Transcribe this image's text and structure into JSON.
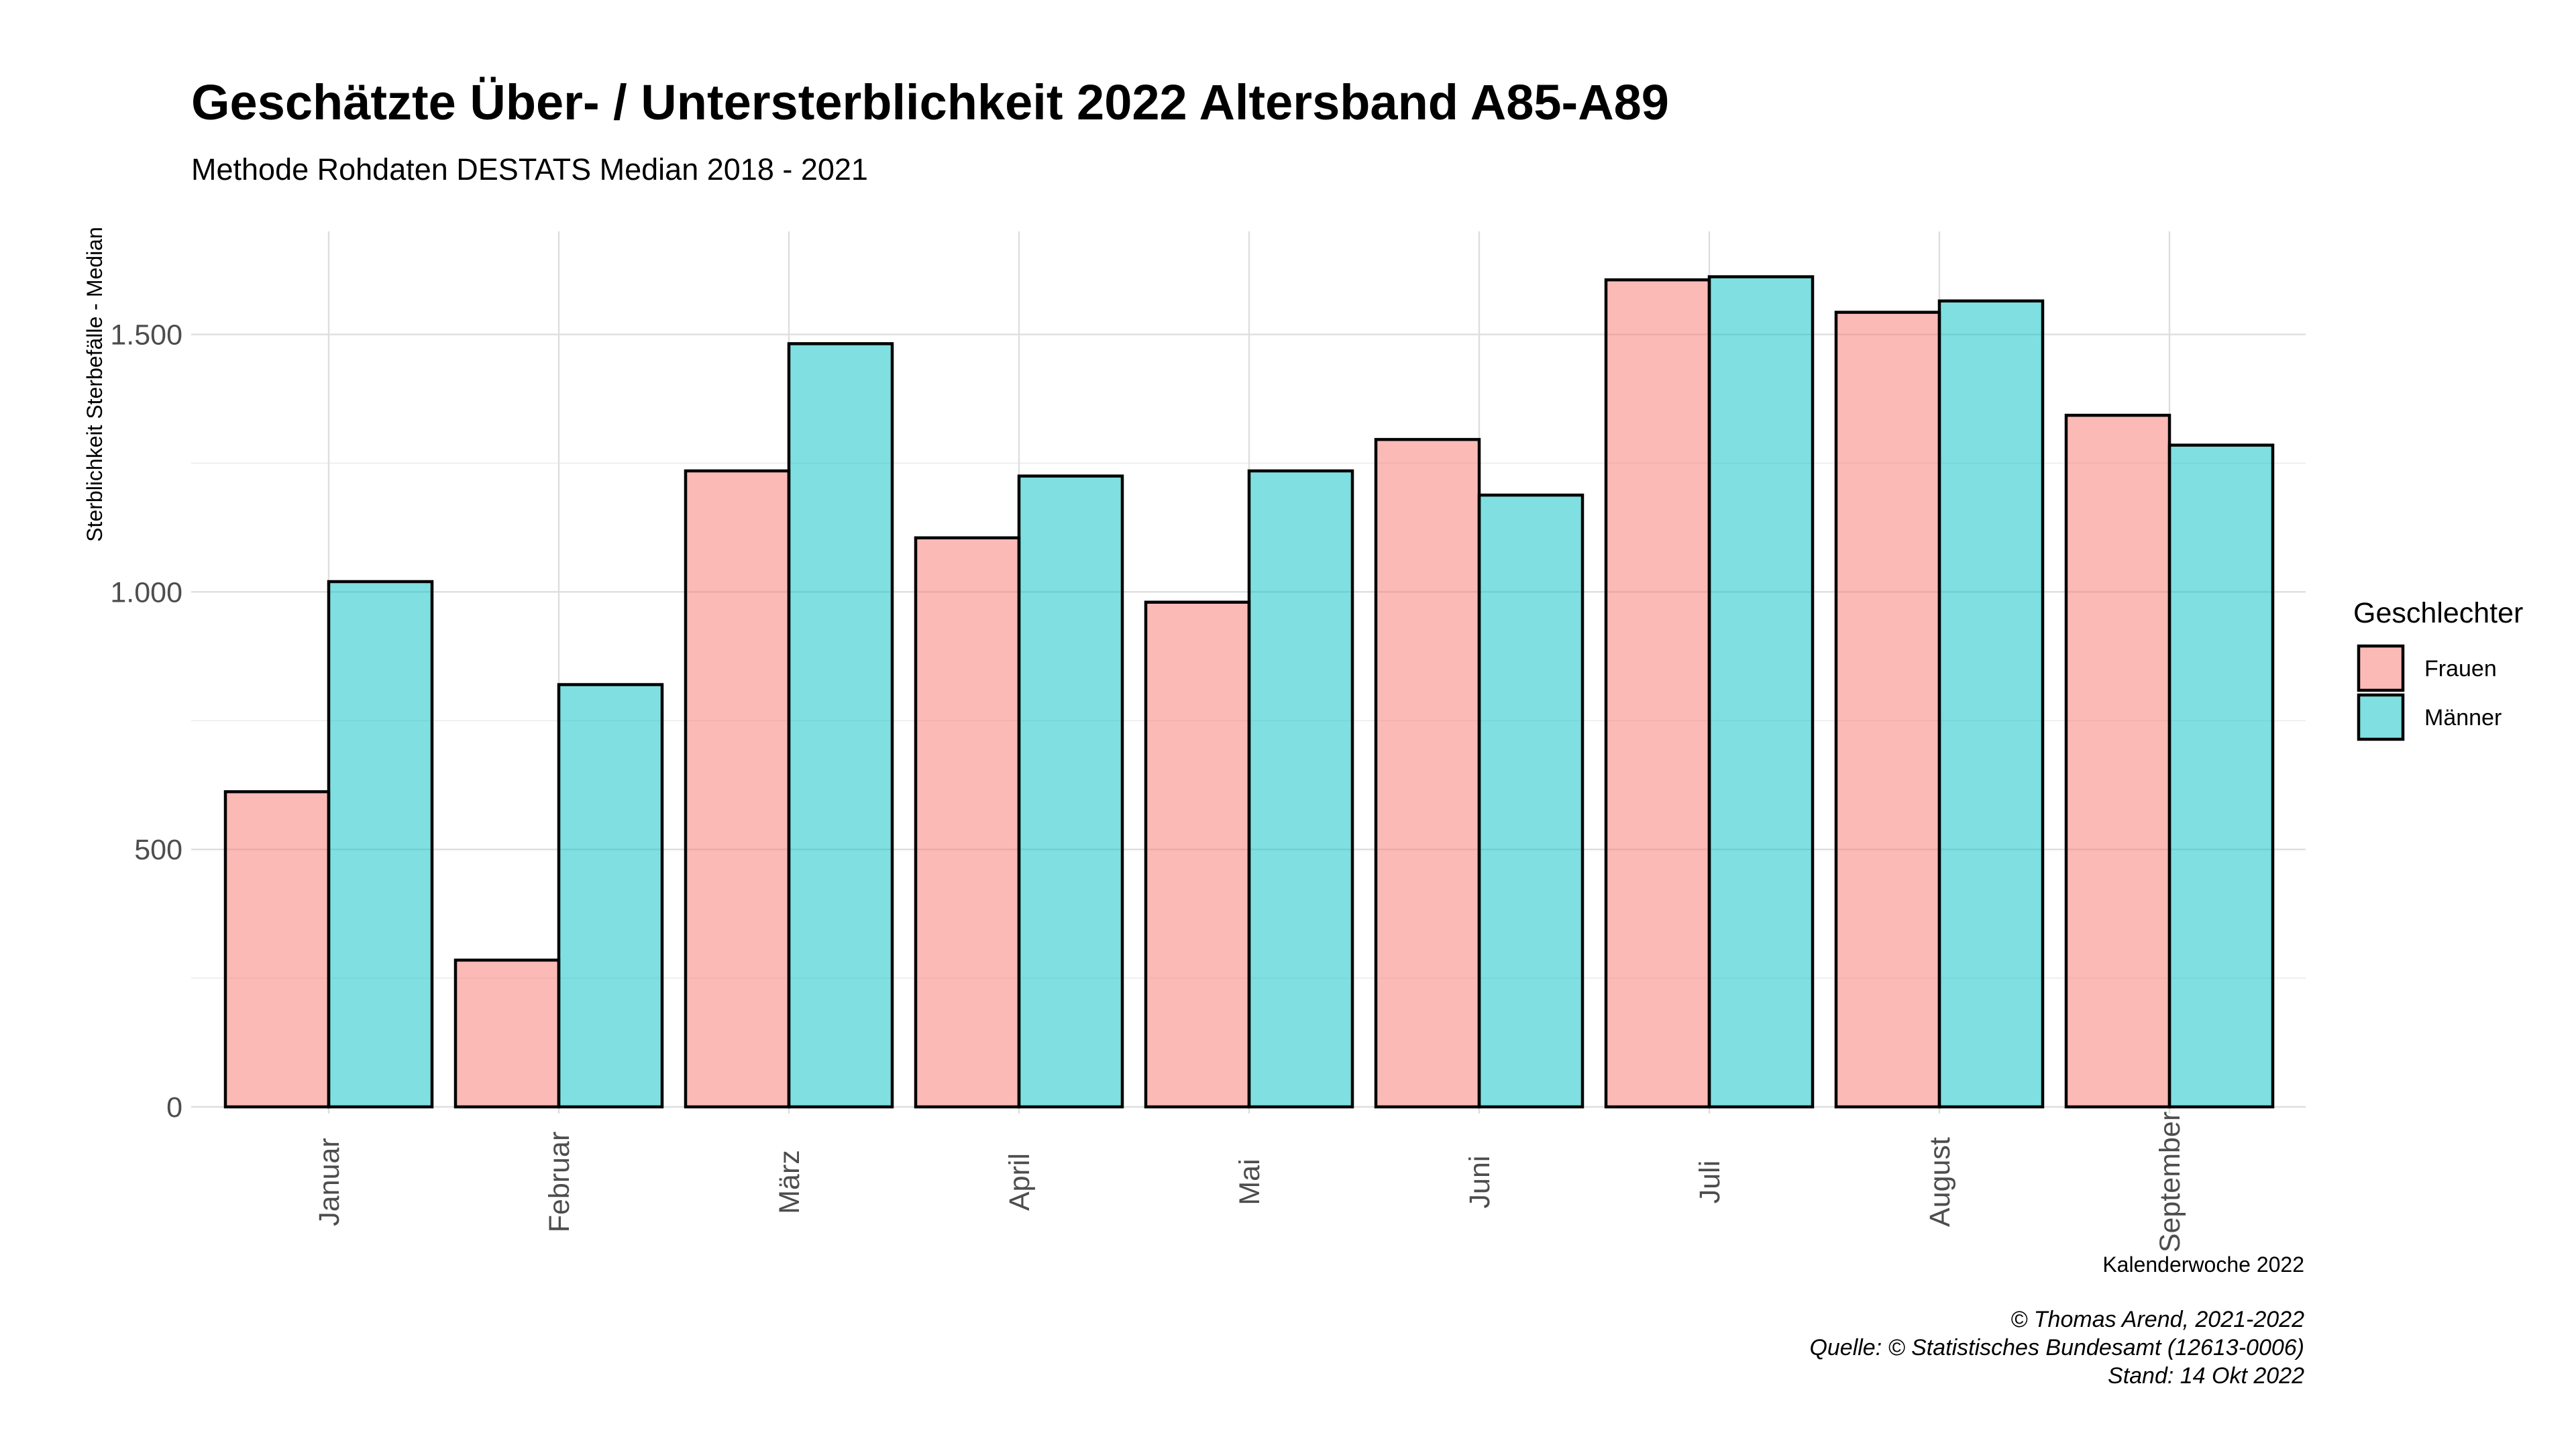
{
  "chart_data": {
    "type": "bar",
    "title": "Geschätzte Über- / Untersterblichkeit 2022 Altersband A85-A89",
    "subtitle": "Methode Rohdaten DESTATS Median 2018 - 2021",
    "xlabel": "Kalenderwoche 2022",
    "ylabel": "Sterblichkeit Sterbefälle - Median",
    "categories": [
      "Januar",
      "Februar",
      "März",
      "April",
      "Mai",
      "Juni",
      "Juli",
      "August",
      "September"
    ],
    "series": [
      {
        "name": "Frauen",
        "color": "#f8766d",
        "values": [
          612,
          285,
          1235,
          1105,
          980,
          1296,
          1606,
          1543,
          1343
        ]
      },
      {
        "name": "Männer",
        "color": "#00bfc4",
        "values": [
          1020,
          820,
          1482,
          1225,
          1235,
          1188,
          1612,
          1565,
          1285
        ]
      }
    ],
    "ylim": [
      0,
      1700
    ],
    "yticks": [
      0,
      500,
      1000,
      1500
    ],
    "ytick_labels": [
      "0",
      "500",
      "1.000",
      "1.500"
    ],
    "grid": true,
    "legend": {
      "title": "Geschlechter",
      "position": "right"
    },
    "caption": [
      "© Thomas Arend, 2021-2022",
      "Quelle: © Statistisches Bundesamt (12613-0006)",
      "Stand: 14 Okt 2022"
    ]
  }
}
